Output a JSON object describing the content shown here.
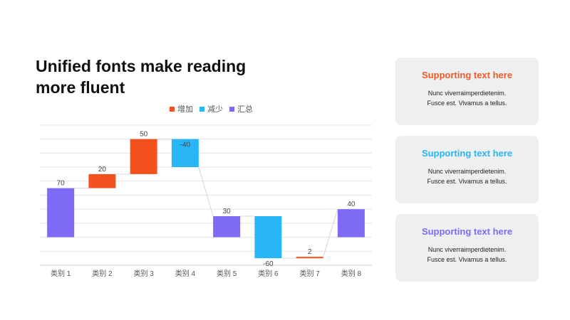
{
  "slide": {
    "title_line1": "Unified fonts make reading",
    "title_line2": "more fluent"
  },
  "cards": [
    {
      "title": "Supporting text here",
      "body_line1": "Nunc  viverraimperdietenim.",
      "body_line2": "Fusce  est.  Vivamus  a  tellus.",
      "color": "#f05a22"
    },
    {
      "title": "Supporting text here",
      "body_line1": "Nunc  viverraimperdietenim.",
      "body_line2": "Fusce  est.  Vivamus  a  tellus.",
      "color": "#29b6f6"
    },
    {
      "title": "Supporting text here",
      "body_line1": "Nunc  viverraimperdietenim.",
      "body_line2": "Fusce  est.  Vivamus  a  tellus.",
      "color": "#7b6cf6"
    }
  ],
  "chart_data": {
    "type": "bar",
    "subtype": "waterfall",
    "categories": [
      "类别 1",
      "类别 2",
      "类别 3",
      "类别 4",
      "类别 5",
      "类别 6",
      "类别 7",
      "类别 8"
    ],
    "values": [
      70,
      20,
      50,
      -40,
      30,
      -60,
      2,
      40
    ],
    "kinds": [
      "total",
      "increase",
      "increase",
      "decrease",
      "total",
      "decrease",
      "increase",
      "total"
    ],
    "data_labels": [
      "70",
      "20",
      "50",
      "-40",
      "30",
      "-60",
      "2",
      "40"
    ],
    "legend": [
      {
        "kind": "increase",
        "label": "增加",
        "color": "#f4511e"
      },
      {
        "kind": "decrease",
        "label": "减少",
        "color": "#29b6f6"
      },
      {
        "kind": "total",
        "label": "汇总",
        "color": "#7e6bf5"
      }
    ],
    "legend_position": "top",
    "ylim": [
      -40,
      170
    ],
    "grid": true,
    "title": "",
    "xlabel": "",
    "ylabel": ""
  }
}
